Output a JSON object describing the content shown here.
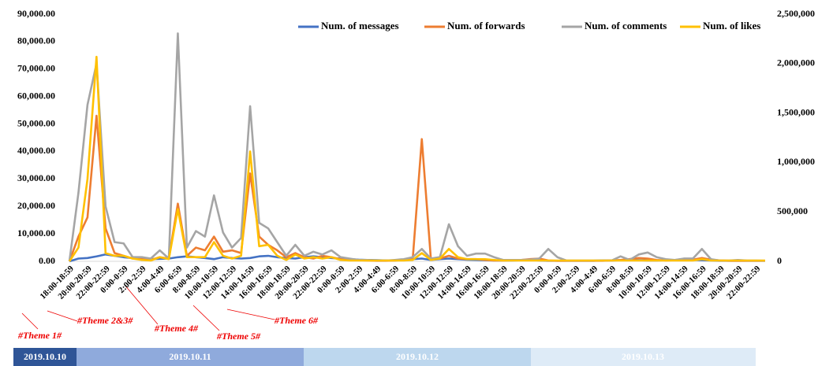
{
  "chart_data": {
    "type": "line",
    "categories": [
      "18:00-18:59",
      null,
      "20:00-20:59",
      null,
      "22:00-22:59",
      null,
      "0:00-0:59",
      null,
      "2:00-2:59",
      null,
      "4:00-4:49",
      null,
      "6:00-6:59",
      null,
      "8:00-8:59",
      null,
      "10:00-10:59",
      null,
      "12:00-12:59",
      null,
      "14:00-14:59",
      null,
      "16:00-16:59",
      null,
      "18:00-18:59",
      null,
      "20:00-20:59",
      null,
      "22:00-22:59",
      null,
      "0:00-0:59",
      null,
      "2:00-2:59",
      null,
      "4:00-4:49",
      null,
      "6:00-6:59",
      null,
      "8:00-8:59",
      null,
      "10:00-10:59",
      null,
      "12:00-12:59",
      null,
      "14:00-14:59",
      null,
      "16:00-16:59",
      null,
      "18:00-18:59",
      null,
      "20:00-20:59",
      null,
      "22:00-22:59",
      null,
      "0:00-0:59",
      null,
      "2:00-2:59",
      null,
      "4:00-4:49",
      null,
      "6:00-6:59",
      null,
      "8:00-8:59",
      null,
      "10:00-10:59",
      null,
      "12:00-12:59",
      null,
      "14:00-14:59",
      null,
      "16:00-16:59",
      null,
      "18:00-18:59",
      null,
      "20:00-20:59",
      null,
      "22:00-22:59",
      null
    ],
    "series": [
      {
        "name": "Num. of messages",
        "color": "#4472c4",
        "values": [
          0,
          1000,
          1200,
          1800,
          2500,
          2000,
          1500,
          1200,
          1000,
          800,
          900,
          1000,
          1500,
          1800,
          1500,
          1200,
          800,
          1500,
          1200,
          1000,
          1200,
          1800,
          2000,
          1500,
          1200,
          1000,
          1500,
          1800,
          1500,
          1200,
          1000,
          800,
          600,
          500,
          400,
          300,
          300,
          500,
          800,
          1000,
          500,
          800,
          1000,
          800,
          600,
          500,
          400,
          300,
          300,
          300,
          400,
          500,
          300,
          200,
          200,
          200,
          200,
          200,
          200,
          300,
          300,
          400,
          500,
          400,
          300,
          300,
          400,
          500,
          600,
          500,
          400,
          300,
          200,
          200,
          200,
          200,
          200,
          200
        ]
      },
      {
        "name": "Num. of forwards",
        "color": "#ed7d31",
        "values": [
          0,
          9000,
          16000,
          53000,
          12000,
          3000,
          2000,
          1000,
          1000,
          500,
          1500,
          1000,
          21000,
          2000,
          5000,
          4000,
          9000,
          3500,
          4000,
          3000,
          32000,
          9000,
          6000,
          4000,
          1500,
          3000,
          1500,
          1000,
          2000,
          1500,
          800,
          500,
          400,
          300,
          200,
          200,
          300,
          600,
          1000,
          44500,
          1000,
          1000,
          2000,
          1000,
          800,
          800,
          500,
          300,
          300,
          400,
          500,
          800,
          1000,
          300,
          200,
          200,
          200,
          200,
          200,
          200,
          300,
          500,
          800,
          1200,
          1000,
          500,
          300,
          400,
          800,
          600,
          1200,
          600,
          300,
          200,
          200,
          200,
          200,
          200
        ]
      },
      {
        "name": "Num. of comments",
        "color": "#a5a5a5",
        "axis": "y2",
        "values": [
          0,
          694000,
          1583000,
          2000000,
          556000,
          194000,
          181000,
          42000,
          42000,
          28000,
          111000,
          28000,
          2306000,
          139000,
          306000,
          250000,
          667000,
          292000,
          139000,
          236000,
          1569000,
          389000,
          333000,
          194000,
          56000,
          167000,
          56000,
          97000,
          69000,
          111000,
          42000,
          28000,
          14000,
          14000,
          8000,
          8000,
          14000,
          22000,
          42000,
          125000,
          28000,
          42000,
          375000,
          153000,
          56000,
          78000,
          78000,
          42000,
          14000,
          14000,
          14000,
          17000,
          28000,
          125000,
          42000,
          8000,
          8000,
          8000,
          8000,
          8000,
          8000,
          50000,
          14000,
          69000,
          89000,
          42000,
          22000,
          14000,
          28000,
          28000,
          125000,
          22000,
          8000,
          8000,
          14000,
          8000,
          8000,
          6000
        ]
      },
      {
        "name": "Num. of likes",
        "color": "#ffc000",
        "axis": "y2",
        "values": [
          0,
          139000,
          833000,
          2069000,
          83000,
          56000,
          56000,
          28000,
          14000,
          8000,
          42000,
          22000,
          528000,
          42000,
          42000,
          42000,
          194000,
          56000,
          28000,
          56000,
          1111000,
          153000,
          167000,
          56000,
          14000,
          69000,
          28000,
          42000,
          28000,
          42000,
          14000,
          8000,
          8000,
          8000,
          8000,
          8000,
          8000,
          8000,
          14000,
          83000,
          14000,
          28000,
          125000,
          42000,
          22000,
          22000,
          22000,
          14000,
          8000,
          8000,
          8000,
          8000,
          8000,
          8000,
          8000,
          8000,
          8000,
          8000,
          8000,
          8000,
          8000,
          8000,
          8000,
          8000,
          8000,
          8000,
          8000,
          8000,
          8000,
          8000,
          22000,
          8000,
          8000,
          8000,
          8000,
          8000,
          8000,
          8000
        ]
      }
    ],
    "ylim": [
      0,
      90000
    ],
    "yticks": [
      {
        "value": 0,
        "label": "0.00"
      },
      {
        "value": 10000,
        "label": "10,000.00"
      },
      {
        "value": 20000,
        "label": "20,000.00"
      },
      {
        "value": 30000,
        "label": "30,000.00"
      },
      {
        "value": 40000,
        "label": "40,000.00"
      },
      {
        "value": 50000,
        "label": "50,000.00"
      },
      {
        "value": 60000,
        "label": "60,000.00"
      },
      {
        "value": 70000,
        "label": "70,000.00"
      },
      {
        "value": 80000,
        "label": "80,000.00"
      },
      {
        "value": 90000,
        "label": "90,000.00"
      }
    ],
    "y2lim": [
      0,
      2500000
    ],
    "y2ticks": [
      0,
      {
        "value": 500000,
        "label": "500,000"
      },
      {
        "value": 1000000,
        "label": "1,000,000"
      },
      {
        "value": 1500000,
        "label": "1,500,000"
      },
      {
        "value": 2000000,
        "label": "2,000,000"
      },
      {
        "value": 2500000,
        "label": "2,500,000"
      }
    ],
    "legend": "top-right",
    "annotations": [
      "#Theme 1#",
      "#Theme 2&3#",
      "#Theme 4#",
      "#Theme 5#",
      "#Theme 6#"
    ],
    "dates": [
      "2019.10.10",
      "2019.10.11",
      "2019.10.12",
      "2019.10.13"
    ]
  }
}
